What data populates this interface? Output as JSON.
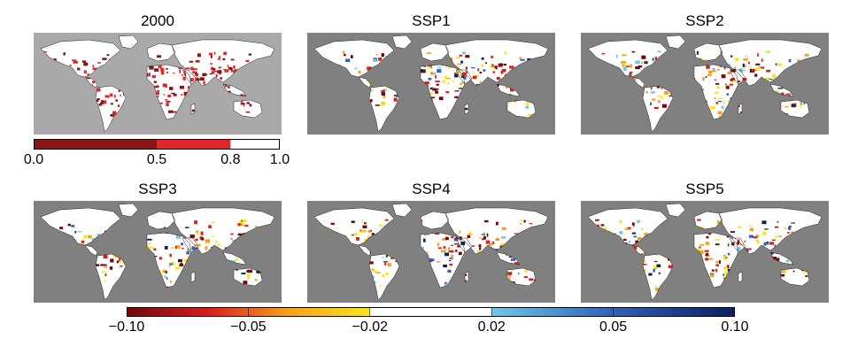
{
  "panels": [
    {
      "id": "p2000",
      "title": "2000",
      "kind": "baseline",
      "ocean": "#a9a9a9"
    },
    {
      "id": "pssp1",
      "title": "SSP1",
      "kind": "change",
      "ocean": "#808080"
    },
    {
      "id": "pssp2",
      "title": "SSP2",
      "kind": "change",
      "ocean": "#808080"
    },
    {
      "id": "pssp3",
      "title": "SSP3",
      "kind": "change",
      "ocean": "#808080"
    },
    {
      "id": "pssp4",
      "title": "SSP4",
      "kind": "change",
      "ocean": "#808080"
    },
    {
      "id": "pssp5",
      "title": "SSP5",
      "kind": "change",
      "ocean": "#808080"
    }
  ],
  "baseline_colorbar": {
    "ticks": [
      "0.0",
      "0.5",
      "0.8",
      "1.0"
    ],
    "tick_values": [
      0.0,
      0.5,
      0.8,
      1.0
    ],
    "segments": [
      {
        "from": 0.0,
        "to": 0.5,
        "color": "#8b1515"
      },
      {
        "from": 0.5,
        "to": 0.8,
        "color": "#e3262a"
      },
      {
        "from": 0.8,
        "to": 1.0,
        "color": "#ffffff"
      }
    ]
  },
  "change_colorbar": {
    "ticks": [
      "−0.10",
      "−0.05",
      "−0.02",
      "0.02",
      "0.05",
      "0.10"
    ],
    "stops": [
      {
        "color": "#6e0a0a"
      },
      {
        "color": "#d61f1f"
      },
      {
        "color": "#f6a21b"
      },
      {
        "color": "#f6e61e"
      },
      {
        "color": "#ffffff"
      },
      {
        "color": "#ffffff"
      },
      {
        "color": "#6fc8e8"
      },
      {
        "color": "#2f62b5"
      },
      {
        "color": "#0c1f5c"
      }
    ]
  },
  "land_color": "#ffffff",
  "coast_color": "#222222"
}
